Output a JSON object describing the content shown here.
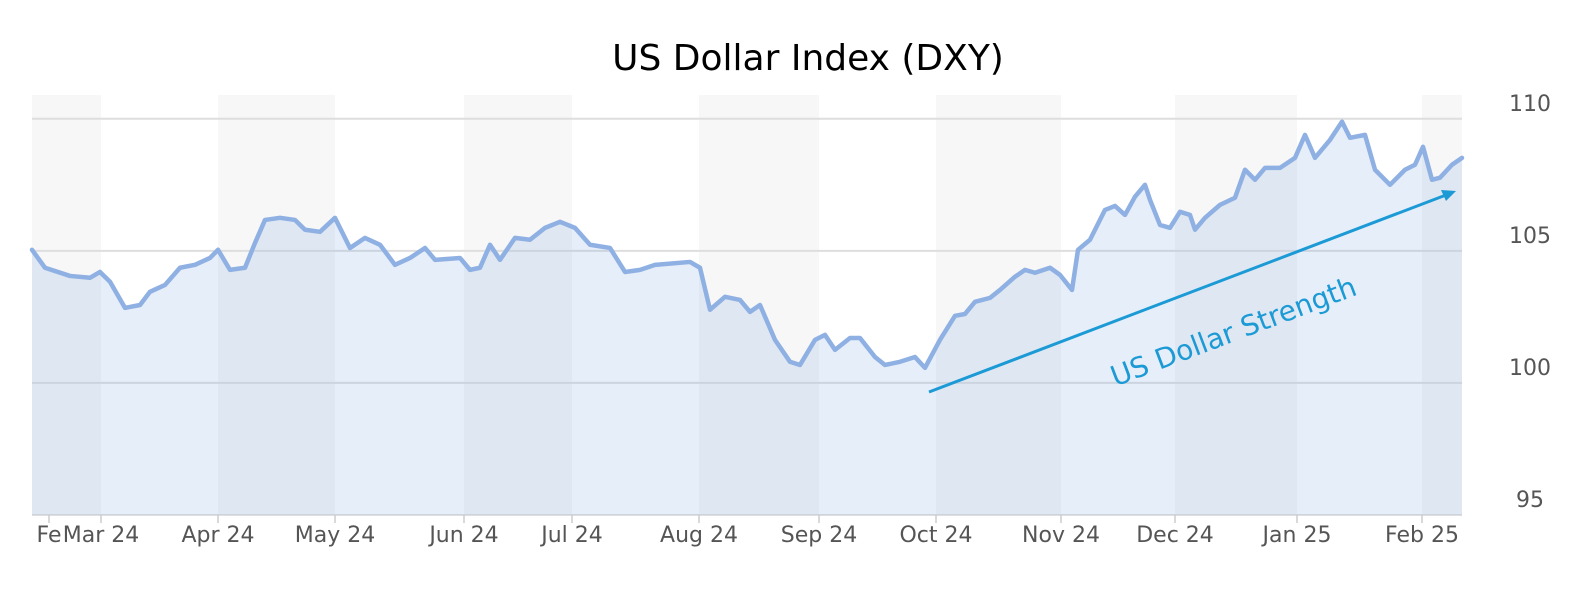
{
  "chart_data": {
    "type": "line",
    "title": "US Dollar Index (DXY)",
    "annotation": "US Dollar Strength",
    "x": [
      0,
      13,
      38,
      58,
      68,
      78,
      93,
      108,
      118,
      133,
      148,
      163,
      178,
      186,
      198,
      213,
      223,
      233,
      248,
      263,
      273,
      288,
      303,
      318,
      333,
      348,
      363,
      378,
      393,
      403,
      428,
      438,
      448,
      458,
      468,
      483,
      498,
      513,
      528,
      543,
      558,
      578,
      593,
      608,
      623,
      658,
      668,
      678,
      693,
      708,
      718,
      728,
      743,
      758,
      768,
      783,
      793,
      803,
      818,
      828,
      843,
      853,
      868,
      883,
      893,
      908,
      923,
      933,
      943,
      958,
      968,
      983,
      993,
      1003,
      1018,
      1028,
      1040,
      1046,
      1058,
      1073,
      1083,
      1093,
      1103,
      1113,
      1118,
      1128,
      1138,
      1148,
      1158,
      1163,
      1173,
      1188,
      1203,
      1213,
      1223,
      1233,
      1248,
      1263,
      1273,
      1283,
      1298,
      1310,
      1318,
      1333,
      1343,
      1358,
      1373,
      1383,
      1391,
      1400,
      1408,
      1420,
      1430
    ],
    "series": [
      {
        "name": "DXY",
        "color": "#8fb0e3",
        "values": [
          105.04,
          104.36,
          104.05,
          103.98,
          104.2,
          103.83,
          102.84,
          102.95,
          103.45,
          103.71,
          104.36,
          104.47,
          104.73,
          105.04,
          104.28,
          104.36,
          105.3,
          106.17,
          106.25,
          106.17,
          105.8,
          105.72,
          106.25,
          105.11,
          105.49,
          105.23,
          104.47,
          104.73,
          105.11,
          104.66,
          104.73,
          104.28,
          104.36,
          105.23,
          104.66,
          105.49,
          105.42,
          105.87,
          106.1,
          105.87,
          105.23,
          105.11,
          104.2,
          104.28,
          104.47,
          104.58,
          104.36,
          102.77,
          103.26,
          103.14,
          102.69,
          102.95,
          101.63,
          100.8,
          100.68,
          101.63,
          101.82,
          101.25,
          101.7,
          101.7,
          100.98,
          100.68,
          100.8,
          100.98,
          100.57,
          101.63,
          102.54,
          102.61,
          103.07,
          103.22,
          103.52,
          104.02,
          104.28,
          104.17,
          104.36,
          104.09,
          103.52,
          105.04,
          105.42,
          106.55,
          106.7,
          106.36,
          107.05,
          107.5,
          106.93,
          105.98,
          105.87,
          106.48,
          106.36,
          105.8,
          106.25,
          106.74,
          107.01,
          108.07,
          107.69,
          108.14,
          108.14,
          108.52,
          109.39,
          108.52,
          109.2,
          109.89,
          109.28,
          109.39,
          108.07,
          107.5,
          108.07,
          108.26,
          108.94,
          107.69,
          107.77,
          108.26,
          108.52
        ]
      }
    ],
    "xlim": [
      0,
      1430
    ],
    "xticks": [
      {
        "value": 17,
        "label": "Fe"
      },
      {
        "value": 69,
        "label": "Mar 24"
      },
      {
        "value": 186,
        "label": "Apr 24"
      },
      {
        "value": 303,
        "label": "May 24"
      },
      {
        "value": 432,
        "label": "Jun 24"
      },
      {
        "value": 540,
        "label": "Jul 24"
      },
      {
        "value": 667,
        "label": "Aug 24"
      },
      {
        "value": 787,
        "label": "Sep 24"
      },
      {
        "value": 904,
        "label": "Oct 24"
      },
      {
        "value": 1029,
        "label": "Nov 24"
      },
      {
        "value": 1143,
        "label": "Dec 24"
      },
      {
        "value": 1265,
        "label": "Jan 25"
      },
      {
        "value": 1390,
        "label": "Feb 25"
      }
    ],
    "ylim": [
      95,
      110.9
    ],
    "yticks": [
      95,
      100,
      105,
      110
    ],
    "grid": true
  }
}
